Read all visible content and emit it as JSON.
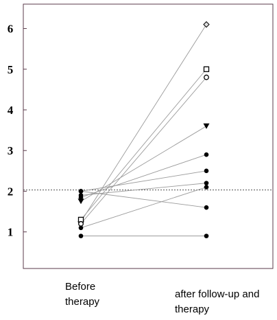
{
  "chart_data": {
    "type": "line",
    "categories": [
      "Before therapy",
      "after follow-up and therapy"
    ],
    "ylim": [
      0.1,
      6.6
    ],
    "yticks": [
      1,
      2,
      3,
      4,
      5,
      6
    ],
    "ytick_labels": [
      "1",
      "2",
      "3",
      "4",
      "5",
      "6"
    ],
    "reference_line": {
      "y": 2.03,
      "style": "dotted"
    },
    "x_category_labels": [
      [
        "Before",
        "therapy"
      ],
      [
        "after follow-up and",
        "therapy"
      ]
    ],
    "series": [
      {
        "marker": "diamond",
        "values": [
          1.25,
          6.1
        ]
      },
      {
        "marker": "square",
        "values": [
          1.3,
          5.0
        ]
      },
      {
        "marker": "circle-open",
        "values": [
          1.2,
          4.8
        ]
      },
      {
        "marker": "triangle-down",
        "values": [
          1.75,
          3.6
        ]
      },
      {
        "marker": "circle",
        "values": [
          1.85,
          2.9
        ]
      },
      {
        "marker": "circle",
        "values": [
          2.0,
          2.5
        ]
      },
      {
        "marker": "circle",
        "values": [
          1.9,
          2.2
        ]
      },
      {
        "marker": "circle",
        "values": [
          1.1,
          2.1
        ]
      },
      {
        "marker": "circle",
        "values": [
          2.0,
          1.6
        ]
      },
      {
        "marker": "circle",
        "values": [
          0.9,
          0.9
        ]
      }
    ]
  }
}
